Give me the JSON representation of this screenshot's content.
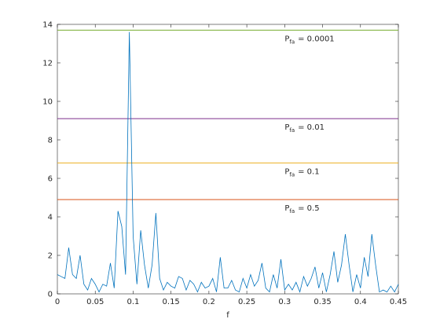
{
  "chart_data": {
    "type": "line",
    "xlabel": "f",
    "xlim": [
      0,
      0.45
    ],
    "xticks": [
      0,
      0.05,
      0.1,
      0.15,
      0.2,
      0.25,
      0.3,
      0.35,
      0.4,
      0.45
    ],
    "ylim": [
      0,
      14
    ],
    "yticks": [
      0,
      2,
      4,
      6,
      8,
      10,
      12,
      14
    ],
    "x": [
      0,
      0.005,
      0.01,
      0.015,
      0.02,
      0.025,
      0.03,
      0.035,
      0.04,
      0.045,
      0.05,
      0.055,
      0.06,
      0.065,
      0.07,
      0.075,
      0.08,
      0.085,
      0.09,
      0.095,
      0.1,
      0.105,
      0.11,
      0.115,
      0.12,
      0.125,
      0.13,
      0.135,
      0.14,
      0.145,
      0.15,
      0.155,
      0.16,
      0.165,
      0.17,
      0.175,
      0.18,
      0.185,
      0.19,
      0.195,
      0.2,
      0.205,
      0.21,
      0.215,
      0.22,
      0.225,
      0.23,
      0.235,
      0.24,
      0.245,
      0.25,
      0.255,
      0.26,
      0.265,
      0.27,
      0.275,
      0.28,
      0.285,
      0.29,
      0.295,
      0.3,
      0.305,
      0.31,
      0.315,
      0.32,
      0.325,
      0.33,
      0.335,
      0.34,
      0.345,
      0.35,
      0.355,
      0.36,
      0.365,
      0.37,
      0.375,
      0.38,
      0.385,
      0.39,
      0.395,
      0.4,
      0.405,
      0.41,
      0.415,
      0.42,
      0.425,
      0.43,
      0.435,
      0.44,
      0.445,
      0.45
    ],
    "series": [
      {
        "color": "#0072bd",
        "values": [
          1.0,
          0.9,
          0.8,
          2.4,
          1.0,
          0.8,
          2.0,
          0.5,
          0.2,
          0.8,
          0.5,
          0.1,
          0.5,
          0.4,
          1.6,
          0.3,
          4.3,
          3.5,
          1.0,
          13.6,
          3.0,
          0.5,
          3.3,
          1.5,
          0.3,
          1.5,
          4.2,
          0.8,
          0.2,
          0.6,
          0.4,
          0.3,
          0.9,
          0.8,
          0.2,
          0.7,
          0.5,
          0.1,
          0.6,
          0.3,
          0.4,
          0.8,
          0.1,
          1.9,
          0.3,
          0.3,
          0.7,
          0.2,
          0.1,
          0.8,
          0.3,
          1.0,
          0.4,
          0.7,
          1.6,
          0.3,
          0.1,
          1.0,
          0.3,
          1.8,
          0.2,
          0.5,
          0.2,
          0.6,
          0.1,
          0.9,
          0.4,
          0.8,
          1.4,
          0.3,
          1.1,
          0.1,
          1.0,
          2.2,
          0.6,
          1.5,
          3.1,
          1.5,
          0.1,
          1.0,
          0.3,
          1.9,
          0.9,
          3.1,
          1.5,
          0.1,
          0.2,
          0.1,
          0.4,
          0.1,
          0.5
        ]
      }
    ],
    "threshold_symbol": "P",
    "threshold_subscript": "fa",
    "thresholds": [
      {
        "level": 13.7,
        "label": "= 0.0001",
        "color": "#77ac30"
      },
      {
        "level": 9.1,
        "label": "=   0.01",
        "color": "#7e2f8e"
      },
      {
        "level": 6.8,
        "label": "=    0.1",
        "color": "#edb120"
      },
      {
        "level": 4.9,
        "label": "=    0.5",
        "color": "#d95319"
      }
    ]
  }
}
